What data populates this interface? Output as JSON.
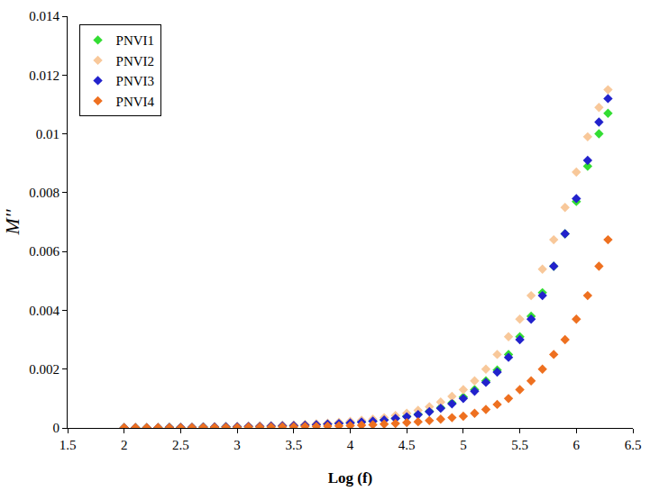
{
  "chart_data": {
    "type": "scatter",
    "x_label": "Log (f)",
    "y_label": "M''",
    "marker": "diamond",
    "grid": false,
    "legend": "upper left",
    "xlim": [
      1.5,
      6.5
    ],
    "xticks": [
      1.5,
      2,
      2.5,
      3,
      3.5,
      4,
      4.5,
      5,
      5.5,
      6,
      6.5
    ],
    "ylim": [
      0,
      0.014
    ],
    "yticks": [
      0,
      0.002,
      0.004,
      0.006,
      0.008,
      0.01,
      0.012,
      0.014
    ],
    "x": [
      2.0,
      2.1,
      2.2,
      2.3,
      2.4,
      2.5,
      2.6,
      2.7,
      2.8,
      2.9,
      3.0,
      3.1,
      3.2,
      3.3,
      3.4,
      3.5,
      3.6,
      3.7,
      3.8,
      3.9,
      4.0,
      4.1,
      4.2,
      4.3,
      4.4,
      4.5,
      4.6,
      4.7,
      4.8,
      4.9,
      5.0,
      5.1,
      5.2,
      5.3,
      5.4,
      5.5,
      5.6,
      5.7,
      5.8,
      5.9,
      6.0,
      6.1,
      6.2,
      6.28
    ],
    "series": [
      {
        "name": "PNVI1",
        "color": "#33dd33",
        "values": [
          1e-05,
          1e-05,
          1e-05,
          1e-05,
          2e-05,
          2e-05,
          2e-05,
          3e-05,
          3e-05,
          4e-05,
          4e-05,
          5e-05,
          5e-05,
          6e-05,
          7e-05,
          8e-05,
          0.0001,
          0.00012,
          0.00014,
          0.00016,
          0.00018,
          0.00021,
          0.00024,
          0.00028,
          0.00033,
          0.0004,
          0.00047,
          0.00057,
          0.00069,
          0.00085,
          0.00105,
          0.0013,
          0.0016,
          0.00197,
          0.0025,
          0.0031,
          0.0038,
          0.0046,
          0.0055,
          0.0066,
          0.0077,
          0.0089,
          0.01,
          0.0107
        ]
      },
      {
        "name": "PNVI2",
        "color": "#f8c89a",
        "values": [
          1e-05,
          1e-05,
          1e-05,
          2e-05,
          2e-05,
          2e-05,
          3e-05,
          3e-05,
          4e-05,
          4e-05,
          5e-05,
          6e-05,
          7e-05,
          8e-05,
          9e-05,
          0.0001,
          0.00012,
          0.00014,
          0.00016,
          0.00019,
          0.00022,
          0.00026,
          0.0003,
          0.00035,
          0.00042,
          0.0005,
          0.0006,
          0.00072,
          0.00088,
          0.00107,
          0.0013,
          0.0016,
          0.002,
          0.0025,
          0.0031,
          0.0037,
          0.0045,
          0.0054,
          0.0064,
          0.0075,
          0.0087,
          0.0099,
          0.0109,
          0.0115
        ]
      },
      {
        "name": "PNVI3",
        "color": "#2222cc",
        "values": [
          1e-05,
          1e-05,
          1e-05,
          1e-05,
          2e-05,
          2e-05,
          2e-05,
          3e-05,
          3e-05,
          4e-05,
          4e-05,
          5e-05,
          5e-05,
          6e-05,
          7e-05,
          8e-05,
          9e-05,
          0.00011,
          0.00013,
          0.00015,
          0.00017,
          0.0002,
          0.00023,
          0.00027,
          0.00032,
          0.00038,
          0.00045,
          0.00055,
          0.00067,
          0.00082,
          0.001,
          0.00125,
          0.00155,
          0.0019,
          0.0024,
          0.003,
          0.0037,
          0.0045,
          0.0055,
          0.0066,
          0.0078,
          0.0091,
          0.0104,
          0.0112
        ]
      },
      {
        "name": "PNVI4",
        "color": "#ee7020",
        "values": [
          1e-05,
          1e-05,
          1e-05,
          1e-05,
          1e-05,
          1e-05,
          1e-05,
          2e-05,
          2e-05,
          2e-05,
          2e-05,
          3e-05,
          3e-05,
          3e-05,
          4e-05,
          4e-05,
          5e-05,
          5e-05,
          6e-05,
          7e-05,
          8e-05,
          9e-05,
          0.00011,
          0.00013,
          0.00015,
          0.00018,
          0.00021,
          0.00025,
          0.0003,
          0.00035,
          0.0004,
          0.0005,
          0.00063,
          0.0008,
          0.001,
          0.0013,
          0.0016,
          0.002,
          0.0025,
          0.003,
          0.0037,
          0.0045,
          0.0055,
          0.0064
        ]
      }
    ]
  }
}
